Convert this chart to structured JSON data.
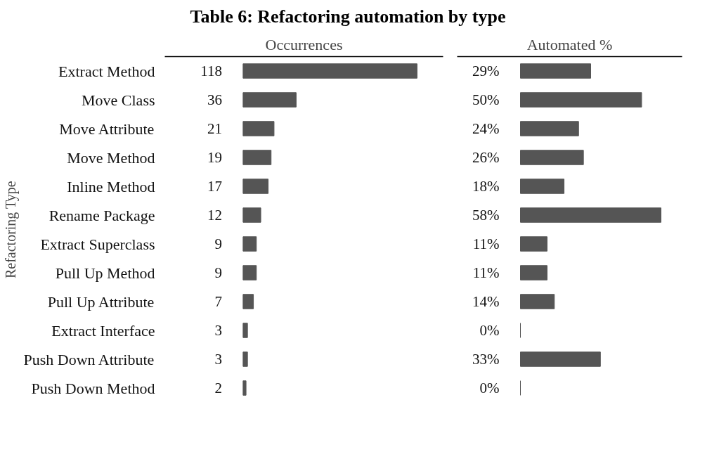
{
  "chart_data": [
    {
      "type": "bar",
      "orientation": "horizontal",
      "title": "Table 6: Refactoring automation by type",
      "ylabel": "Refactoring Type",
      "xlabel": "Occurrences",
      "color": "#555555",
      "data_labels": true,
      "grid": false,
      "categories": [
        "Extract Method",
        "Move Class",
        "Move Attribute",
        "Move Method",
        "Inline Method",
        "Rename Package",
        "Extract Superclass",
        "Pull Up Method",
        "Pull Up Attribute",
        "Extract Interface",
        "Push Down Attribute",
        "Push Down Method"
      ],
      "values": [
        118,
        36,
        21,
        19,
        17,
        12,
        9,
        9,
        7,
        3,
        3,
        2
      ]
    },
    {
      "type": "bar",
      "orientation": "horizontal",
      "xlabel": "Automated %",
      "color": "#555555",
      "grid": false,
      "categories": [
        null,
        null,
        null,
        null,
        null,
        null,
        null,
        null,
        null,
        null,
        null,
        null
      ],
      "values": [
        29,
        50,
        24,
        26,
        18,
        58,
        11,
        11,
        14,
        0,
        33,
        0
      ],
      "value_labels": [
        "29%",
        "50%",
        "24%",
        "26%",
        "18%",
        "58%",
        "11%",
        "11%",
        "14%",
        "0%",
        "33%",
        "0%"
      ]
    }
  ]
}
